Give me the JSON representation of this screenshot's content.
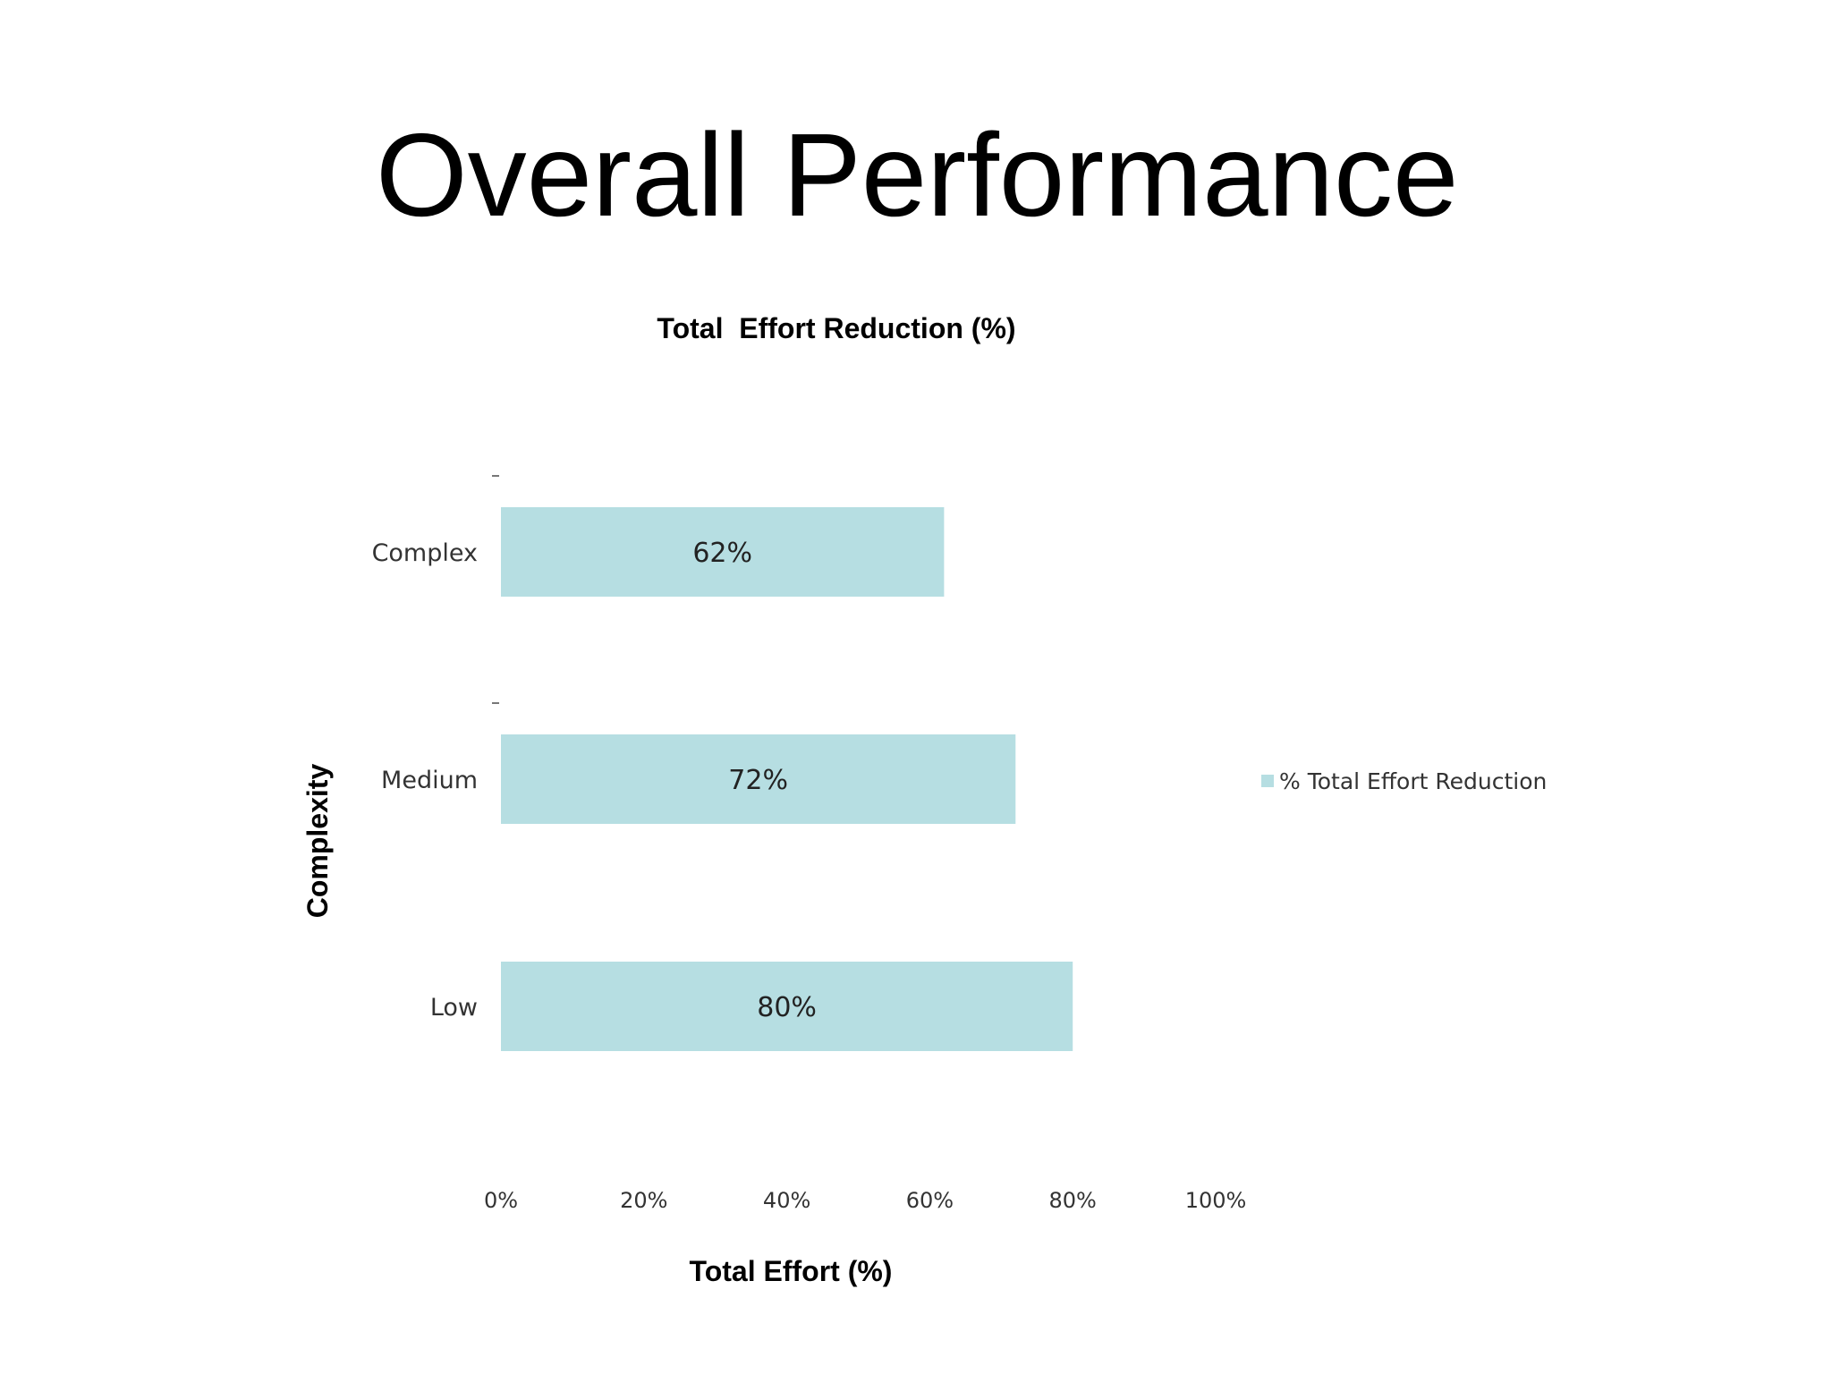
{
  "page": {
    "title": "Overall Performance"
  },
  "chart_data": {
    "type": "bar",
    "orientation": "horizontal",
    "title": "Total  Effort Reduction (%)",
    "xlabel": "Total Effort (%)",
    "ylabel": "Complexity",
    "categories": [
      "Complex",
      "Medium",
      "Low"
    ],
    "series": [
      {
        "name": "% Total Effort Reduction",
        "values": [
          62,
          72,
          80
        ],
        "data_labels": [
          "62%",
          "72%",
          "80%"
        ],
        "color": "#b6dee2"
      }
    ],
    "xlim": [
      0,
      100
    ],
    "xticks": [
      0,
      20,
      40,
      60,
      80,
      100
    ],
    "xtick_labels": [
      "0%",
      "20%",
      "40%",
      "60%",
      "80%",
      "100%"
    ],
    "grid": false,
    "legend_position": "right"
  }
}
